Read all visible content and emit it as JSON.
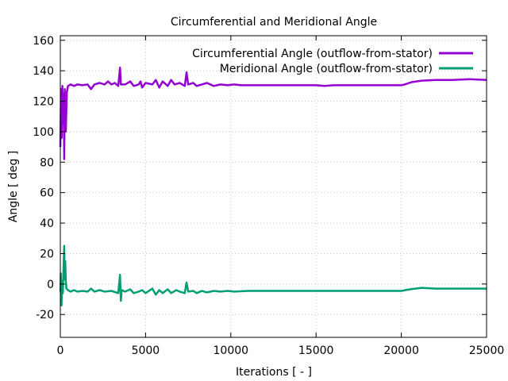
{
  "chart_data": {
    "type": "line",
    "title": "Circumferential and Meridional Angle",
    "xlabel": "Iterations [ - ]",
    "ylabel": "Angle [ deg ]",
    "xlim": [
      0,
      25000
    ],
    "ylim": [
      -35,
      163
    ],
    "xticks": [
      0,
      5000,
      10000,
      15000,
      20000,
      25000
    ],
    "xtick_labels": [
      "0",
      "5000",
      "10000",
      "15000",
      "20000",
      "25000"
    ],
    "yticks": [
      -20,
      0,
      20,
      40,
      60,
      80,
      100,
      120,
      140,
      160
    ],
    "ytick_labels": [
      "-20",
      "0",
      "20",
      "40",
      "60",
      "80",
      "100",
      "120",
      "140",
      "160"
    ],
    "grid": true,
    "legend_position": "top-right",
    "series": [
      {
        "name": "Circumferential Angle (outflow-from-stator)",
        "color": "#9400d3",
        "points": [
          [
            0,
            90
          ],
          [
            40,
            128
          ],
          [
            80,
            96
          ],
          [
            120,
            130
          ],
          [
            160,
            105
          ],
          [
            200,
            125
          ],
          [
            230,
            82
          ],
          [
            260,
            128
          ],
          [
            320,
            100
          ],
          [
            380,
            126
          ],
          [
            450,
            130
          ],
          [
            600,
            131
          ],
          [
            800,
            130
          ],
          [
            1000,
            131
          ],
          [
            1300,
            130.5
          ],
          [
            1600,
            131
          ],
          [
            1800,
            128
          ],
          [
            2000,
            131
          ],
          [
            2300,
            132
          ],
          [
            2600,
            131
          ],
          [
            2800,
            133
          ],
          [
            3000,
            131
          ],
          [
            3200,
            132
          ],
          [
            3400,
            130
          ],
          [
            3500,
            142
          ],
          [
            3550,
            131
          ],
          [
            3800,
            131
          ],
          [
            4100,
            133
          ],
          [
            4300,
            130
          ],
          [
            4600,
            131
          ],
          [
            4700,
            133
          ],
          [
            4800,
            129
          ],
          [
            5000,
            132
          ],
          [
            5400,
            131
          ],
          [
            5600,
            134
          ],
          [
            5800,
            129
          ],
          [
            6000,
            133
          ],
          [
            6300,
            130
          ],
          [
            6500,
            134
          ],
          [
            6700,
            131
          ],
          [
            7000,
            132
          ],
          [
            7300,
            130
          ],
          [
            7400,
            139
          ],
          [
            7500,
            131
          ],
          [
            7800,
            132
          ],
          [
            8000,
            130
          ],
          [
            8300,
            131
          ],
          [
            8600,
            132
          ],
          [
            9000,
            130
          ],
          [
            9400,
            131
          ],
          [
            9800,
            130.5
          ],
          [
            10200,
            131
          ],
          [
            10600,
            130.5
          ],
          [
            11200,
            130.5
          ],
          [
            12000,
            130.5
          ],
          [
            13000,
            130.5
          ],
          [
            14000,
            130.5
          ],
          [
            15000,
            130.5
          ],
          [
            15500,
            130
          ],
          [
            16000,
            130.5
          ],
          [
            17000,
            130.5
          ],
          [
            18000,
            130.5
          ],
          [
            19000,
            130.5
          ],
          [
            20000,
            130.5
          ],
          [
            20200,
            131
          ],
          [
            20600,
            132.5
          ],
          [
            21200,
            133.5
          ],
          [
            22000,
            134
          ],
          [
            23000,
            134
          ],
          [
            24000,
            134.5
          ],
          [
            25000,
            134
          ]
        ]
      },
      {
        "name": "Meridional Angle (outflow-from-stator)",
        "color": "#009e73",
        "points": [
          [
            0,
            -5
          ],
          [
            30,
            7
          ],
          [
            70,
            -14
          ],
          [
            110,
            2
          ],
          [
            150,
            -6
          ],
          [
            190,
            12
          ],
          [
            230,
            25
          ],
          [
            260,
            3
          ],
          [
            290,
            15
          ],
          [
            320,
            2
          ],
          [
            360,
            -3
          ],
          [
            450,
            -4
          ],
          [
            600,
            -5
          ],
          [
            800,
            -4
          ],
          [
            1000,
            -5
          ],
          [
            1300,
            -4.5
          ],
          [
            1600,
            -5
          ],
          [
            1800,
            -3
          ],
          [
            2000,
            -5
          ],
          [
            2300,
            -4
          ],
          [
            2600,
            -5
          ],
          [
            3000,
            -4.5
          ],
          [
            3400,
            -6
          ],
          [
            3500,
            6
          ],
          [
            3550,
            -11
          ],
          [
            3600,
            -4
          ],
          [
            3800,
            -5
          ],
          [
            4100,
            -3.5
          ],
          [
            4300,
            -6
          ],
          [
            4600,
            -5
          ],
          [
            4800,
            -4
          ],
          [
            5000,
            -6
          ],
          [
            5400,
            -3
          ],
          [
            5600,
            -7
          ],
          [
            5800,
            -4
          ],
          [
            6000,
            -6
          ],
          [
            6300,
            -3.5
          ],
          [
            6500,
            -6
          ],
          [
            6800,
            -4
          ],
          [
            7000,
            -5
          ],
          [
            7300,
            -6
          ],
          [
            7400,
            1
          ],
          [
            7500,
            -5
          ],
          [
            7800,
            -4.5
          ],
          [
            8000,
            -6
          ],
          [
            8300,
            -4.5
          ],
          [
            8600,
            -5.5
          ],
          [
            9000,
            -4.5
          ],
          [
            9400,
            -5
          ],
          [
            9800,
            -4.5
          ],
          [
            10200,
            -5
          ],
          [
            11000,
            -4.5
          ],
          [
            12000,
            -4.5
          ],
          [
            13000,
            -4.5
          ],
          [
            14000,
            -4.5
          ],
          [
            15000,
            -4.5
          ],
          [
            16000,
            -4.5
          ],
          [
            17000,
            -4.5
          ],
          [
            18000,
            -4.5
          ],
          [
            19000,
            -4.5
          ],
          [
            20000,
            -4.5
          ],
          [
            20500,
            -3.5
          ],
          [
            21200,
            -2.5
          ],
          [
            22000,
            -3
          ],
          [
            23000,
            -3
          ],
          [
            24000,
            -3
          ],
          [
            25000,
            -3
          ]
        ]
      }
    ]
  }
}
